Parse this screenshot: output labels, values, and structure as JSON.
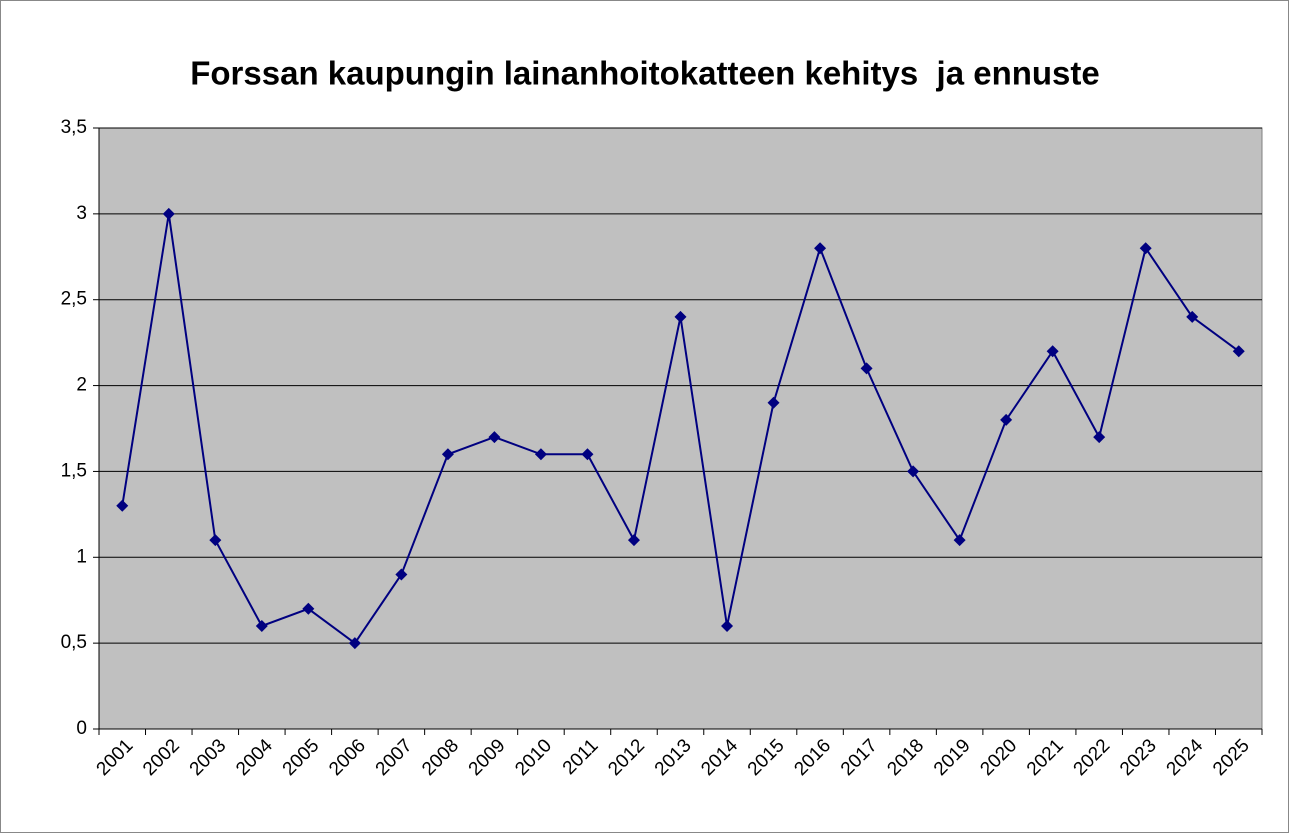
{
  "chart_data": {
    "type": "line",
    "title": "Forssan kaupungin lainanhoitokatteen kehitys  ja ennuste",
    "categories": [
      "2001",
      "2002",
      "2003",
      "2004",
      "2005",
      "2006",
      "2007",
      "2008",
      "2009",
      "2010",
      "2011",
      "2012",
      "2013",
      "2014",
      "2015",
      "2016",
      "2017",
      "2018",
      "2019",
      "2020",
      "2021",
      "2022",
      "2023",
      "2024",
      "2025"
    ],
    "series": [
      {
        "color": "#000080",
        "values": [
          1.3,
          3.0,
          1.1,
          0.6,
          0.7,
          0.5,
          0.9,
          1.6,
          1.7,
          1.6,
          1.6,
          1.1,
          2.4,
          0.6,
          1.9,
          2.8,
          2.1,
          1.5,
          1.1,
          1.8,
          2.2,
          1.7,
          2.8,
          2.4,
          2.2
        ]
      }
    ],
    "ylim": [
      0,
      3.5
    ],
    "yticks": [
      0,
      {
        "value": 0.5,
        "label": "0,5"
      },
      1,
      {
        "value": 1.5,
        "label": "1,5"
      },
      2,
      {
        "value": 2.5,
        "label": "2,5"
      },
      3,
      {
        "value": 3.5,
        "label": "3,5"
      }
    ],
    "grid": true
  }
}
